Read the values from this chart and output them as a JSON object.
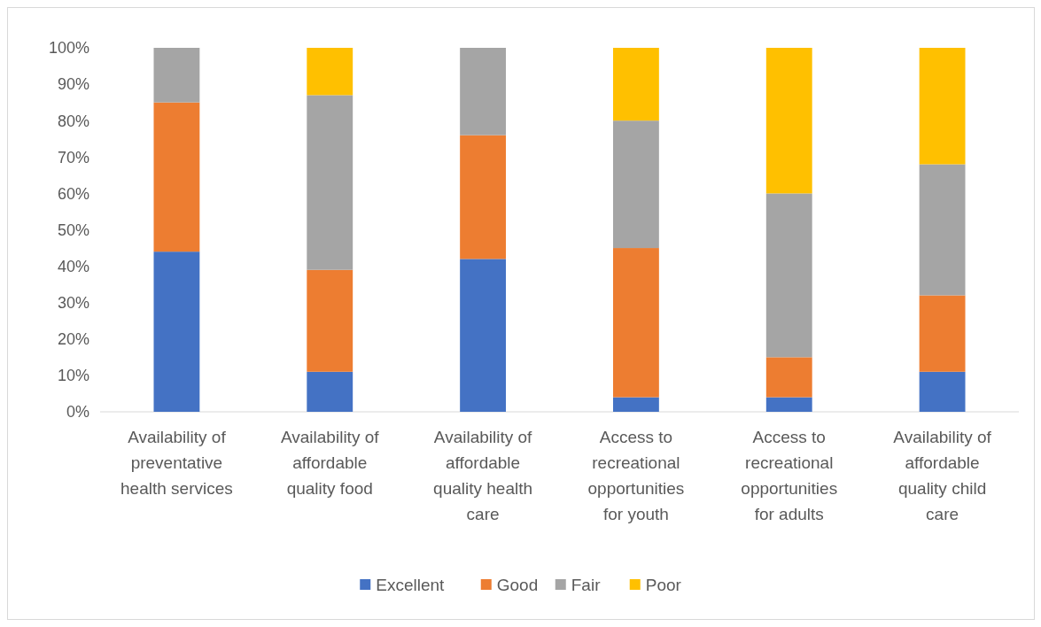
{
  "chart_data": {
    "type": "bar",
    "stacked": true,
    "categories": [
      "Availability of preventative health services",
      "Availability of affordable quality food",
      "Availability of affordable quality health care",
      "Access to recreational opportunities for youth",
      "Access to recreational opportunities for adults",
      "Availability of affordable quality child care"
    ],
    "series": [
      {
        "name": "Excellent",
        "color": "#4472c4",
        "values": [
          44,
          11,
          42,
          4,
          4,
          11
        ]
      },
      {
        "name": "Good",
        "color": "#ed7d31",
        "values": [
          41,
          28,
          34,
          41,
          11,
          21
        ]
      },
      {
        "name": "Fair",
        "color": "#a5a5a5",
        "values": [
          15,
          48,
          24,
          35,
          45,
          36
        ]
      },
      {
        "name": "Poor",
        "color": "#ffc000",
        "values": [
          0,
          13,
          0,
          20,
          40,
          32
        ]
      }
    ],
    "ylim": [
      0,
      100
    ],
    "yticks": [
      {
        "value": 0,
        "label": "0%"
      },
      {
        "value": 10,
        "label": "10%"
      },
      {
        "value": 20,
        "label": "20%"
      },
      {
        "value": 30,
        "label": "30%"
      },
      {
        "value": 40,
        "label": "40%"
      },
      {
        "value": 50,
        "label": "50%"
      },
      {
        "value": 60,
        "label": "60%"
      },
      {
        "value": 70,
        "label": "70%"
      },
      {
        "value": 80,
        "label": "80%"
      },
      {
        "value": 90,
        "label": "90%"
      },
      {
        "value": 100,
        "label": "100%"
      }
    ],
    "legend": "bottom"
  }
}
